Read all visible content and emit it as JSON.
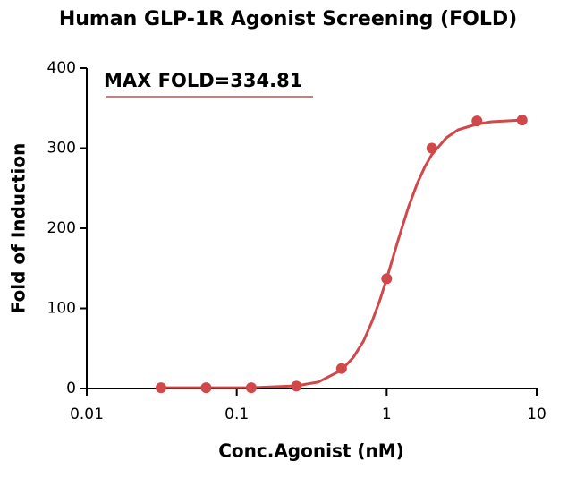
{
  "chart_data": {
    "type": "dose-response",
    "title": "Human GLP-1R Agonist Screening (FOLD)",
    "xlabel": "Conc.Agonist (nM)",
    "ylabel": "Fold of Induction",
    "annotation": "MAX FOLD=334.81",
    "log_x": true,
    "xlim": [
      0.01,
      10
    ],
    "xticks": [
      0.01,
      0.1,
      1,
      10
    ],
    "ylim": [
      0,
      400
    ],
    "yticks": [
      0,
      100,
      200,
      300,
      400
    ],
    "color": "#d0484a",
    "points": {
      "x": [
        0.03125,
        0.0625,
        0.125,
        0.25,
        0.5,
        1,
        2,
        4,
        8
      ],
      "values": [
        1,
        1,
        1,
        3,
        25,
        137,
        300,
        334,
        335
      ]
    },
    "curve": {
      "x": [
        0.03125,
        0.0625,
        0.125,
        0.25,
        0.35,
        0.5,
        0.6,
        0.7,
        0.8,
        0.9,
        1,
        1.2,
        1.4,
        1.6,
        1.8,
        2,
        2.5,
        3,
        4,
        5,
        8
      ],
      "values": [
        1,
        1,
        1,
        3.4,
        8,
        23,
        39,
        59,
        84,
        110,
        137,
        187,
        227,
        256,
        277,
        292,
        313,
        323,
        330,
        333,
        335
      ]
    }
  }
}
